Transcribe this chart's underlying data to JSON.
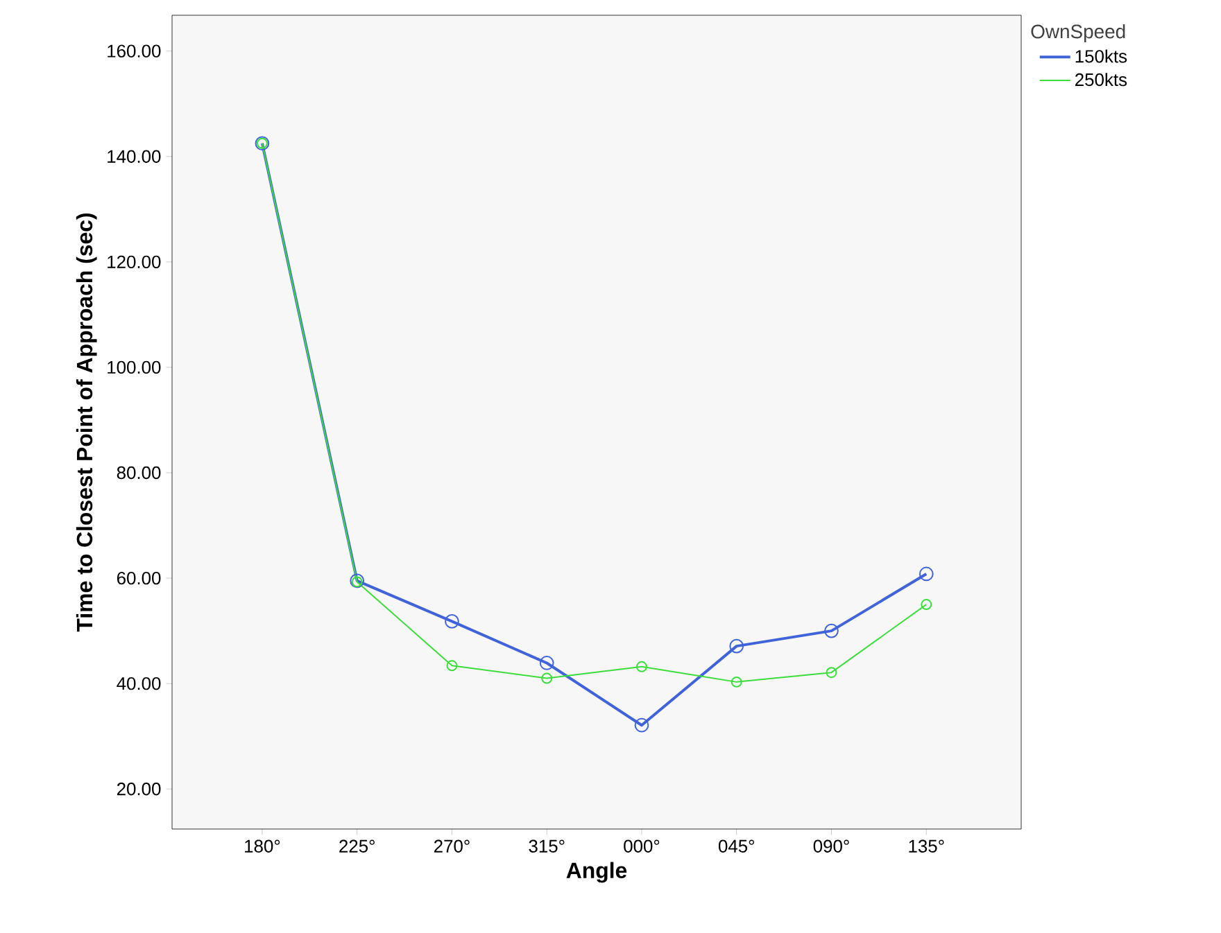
{
  "chart_data": {
    "type": "line",
    "xlabel": "Angle",
    "ylabel": "Time to Closest Point of Approach (sec)",
    "legend_title": "OwnSpeed",
    "categories": [
      "180°",
      "225°",
      "270°",
      "315°",
      "000°",
      "045°",
      "090°",
      "135°"
    ],
    "series": [
      {
        "name": "150kts",
        "color": "#4063d8",
        "values": [
          142.5,
          59.5,
          51.8,
          43.9,
          32.1,
          47.1,
          50.0,
          60.8
        ]
      },
      {
        "name": "250kts",
        "color": "#3ddc3d",
        "values": [
          142.5,
          59.3,
          43.4,
          41.0,
          43.2,
          40.3,
          42.1,
          55.0
        ]
      }
    ],
    "ylim": [
      12.4,
      166.8
    ],
    "yticks": [
      {
        "value": 20,
        "label": "20.00"
      },
      {
        "value": 40,
        "label": "40.00"
      },
      {
        "value": 60,
        "label": "60.00"
      },
      {
        "value": 80,
        "label": "80.00"
      },
      {
        "value": 100,
        "label": "100.00"
      },
      {
        "value": 120,
        "label": "120.00"
      },
      {
        "value": 140,
        "label": "140.00"
      },
      {
        "value": 160,
        "label": "160.00"
      }
    ],
    "marker": "circle",
    "line_style": "solid",
    "grid": false,
    "legend": "top right"
  }
}
